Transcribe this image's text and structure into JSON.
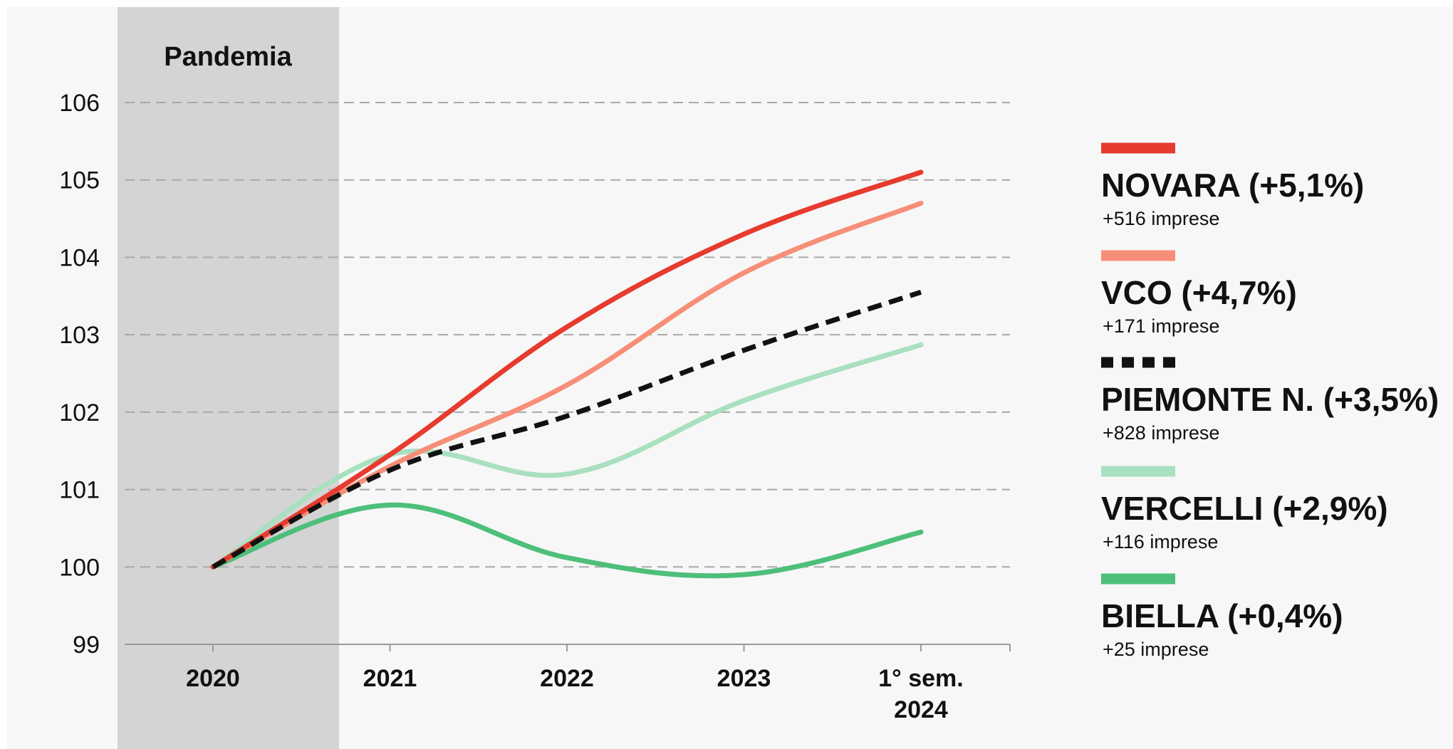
{
  "chart_data": {
    "type": "line",
    "title": "",
    "xlabel": "",
    "ylabel": "",
    "categories": [
      "2020",
      "2021",
      "2022",
      "2023",
      "1° sem. 2024"
    ],
    "category_lines": [
      [
        "2020"
      ],
      [
        "2021"
      ],
      [
        "2022"
      ],
      [
        "2023"
      ],
      [
        "1° sem.",
        "2024"
      ]
    ],
    "ylim": [
      99,
      106
    ],
    "yticks": [
      "99",
      "100",
      "101",
      "102",
      "103",
      "104",
      "105",
      "106"
    ],
    "grid": "horizontal dashed",
    "legend_position": "right",
    "shaded_band": {
      "label": "Pandemia",
      "from": "2020",
      "to": "2021"
    },
    "series": [
      {
        "name": "NOVARA (+5,1%)",
        "note": "+516 imprese",
        "color": "#e63b2e",
        "style": "solid",
        "values": [
          100.0,
          101.45,
          103.1,
          104.3,
          105.1
        ]
      },
      {
        "name": "VCO (+4,7%)",
        "note": "+171 imprese",
        "color": "#f78f78",
        "style": "solid",
        "values": [
          100.0,
          101.3,
          102.35,
          103.8,
          104.7
        ]
      },
      {
        "name": "PIEMONTE N. (+3,5%)",
        "note": "+828 imprese",
        "color": "#111111",
        "style": "dashed",
        "values": [
          100.0,
          101.25,
          101.95,
          102.8,
          103.55
        ]
      },
      {
        "name": "VERCELLI (+2,9%)",
        "note": "+116 imprese",
        "color": "#a8e0c0",
        "style": "solid",
        "values": [
          100.0,
          101.45,
          101.2,
          102.15,
          102.87
        ]
      },
      {
        "name": "BIELLA (+0,4%)",
        "note": "+25 imprese",
        "color": "#4dbf7a",
        "style": "solid",
        "values": [
          100.0,
          100.8,
          100.12,
          99.9,
          100.45
        ]
      }
    ]
  }
}
